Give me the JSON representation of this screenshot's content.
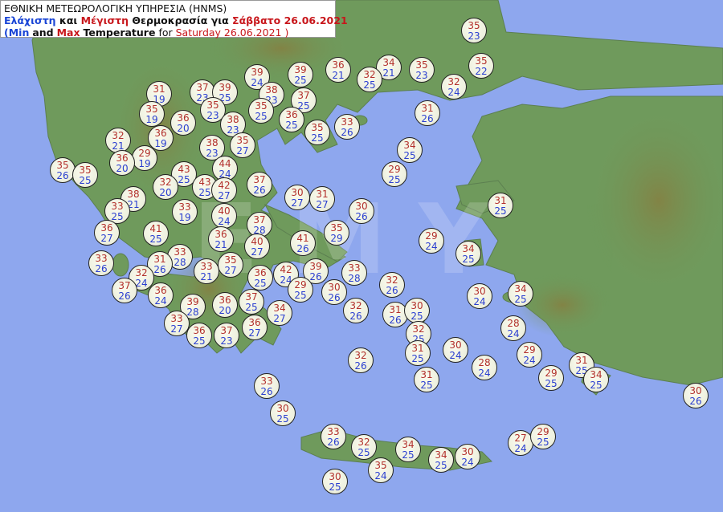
{
  "header": {
    "line1": "ΕΘΝΙΚΗ ΜΕΤΕΩΡΟΛΟΓΙΚΗ ΥΠΗΡΕΣΙΑ (HNMS)",
    "line2": {
      "min": "Ελάχιστη",
      "and": "και",
      "max": "Μέγιστη",
      "temp": "Θερμοκρασία για",
      "date": "Σάββατο 26.06.2021"
    },
    "line3": {
      "open": "(",
      "min": "Min",
      "and": "and",
      "max": "Max",
      "temp": "Temperature",
      "for": "for",
      "date": "Saturday 26.06.2021 )"
    }
  },
  "watermark": "EMY",
  "colors": {
    "sea": "#8ea7ee",
    "land": "#6f9a5c",
    "max": "#b2302c",
    "min": "#2b3fd0"
  },
  "stations": [
    [
      590,
      38,
      35,
      23
    ],
    [
      599,
      82,
      35,
      22
    ],
    [
      525,
      87,
      35,
      23
    ],
    [
      484,
      84,
      34,
      21
    ],
    [
      460,
      99,
      32,
      25
    ],
    [
      421,
      87,
      36,
      21
    ],
    [
      374,
      93,
      39,
      25
    ],
    [
      320,
      96,
      39,
      24
    ],
    [
      338,
      118,
      38,
      23
    ],
    [
      378,
      125,
      37,
      25
    ],
    [
      325,
      138,
      35,
      25
    ],
    [
      363,
      149,
      36,
      25
    ],
    [
      395,
      165,
      35,
      25
    ],
    [
      432,
      158,
      33,
      26
    ],
    [
      565,
      108,
      32,
      24
    ],
    [
      532,
      141,
      31,
      26
    ],
    [
      510,
      187,
      34,
      25
    ],
    [
      491,
      217,
      29,
      25
    ],
    [
      623,
      256,
      31,
      25
    ],
    [
      198,
      117,
      31,
      19
    ],
    [
      252,
      115,
      37,
      23
    ],
    [
      280,
      115,
      39,
      25
    ],
    [
      265,
      137,
      35,
      23
    ],
    [
      189,
      142,
      35,
      19
    ],
    [
      228,
      153,
      36,
      20
    ],
    [
      290,
      155,
      38,
      23
    ],
    [
      200,
      172,
      36,
      19
    ],
    [
      147,
      175,
      32,
      21
    ],
    [
      264,
      184,
      38,
      23
    ],
    [
      302,
      181,
      35,
      27
    ],
    [
      180,
      197,
      29,
      19
    ],
    [
      152,
      203,
      36,
      20
    ],
    [
      78,
      212,
      35,
      26
    ],
    [
      106,
      218,
      35,
      25
    ],
    [
      229,
      217,
      43,
      25
    ],
    [
      280,
      210,
      44,
      24
    ],
    [
      206,
      233,
      32,
      20
    ],
    [
      255,
      233,
      43,
      25
    ],
    [
      279,
      237,
      42,
      27
    ],
    [
      323,
      230,
      37,
      26
    ],
    [
      370,
      246,
      30,
      27
    ],
    [
      401,
      248,
      31,
      27
    ],
    [
      166,
      248,
      38,
      21
    ],
    [
      146,
      263,
      33,
      25
    ],
    [
      230,
      264,
      33,
      19
    ],
    [
      279,
      269,
      40,
      24
    ],
    [
      450,
      263,
      30,
      26
    ],
    [
      133,
      290,
      36,
      27
    ],
    [
      194,
      291,
      41,
      25
    ],
    [
      323,
      280,
      37,
      28
    ],
    [
      275,
      298,
      36,
      21
    ],
    [
      320,
      307,
      40,
      27
    ],
    [
      377,
      303,
      41,
      26
    ],
    [
      419,
      290,
      35,
      29
    ],
    [
      537,
      300,
      29,
      24
    ],
    [
      583,
      316,
      34,
      25
    ],
    [
      126,
      328,
      33,
      26
    ],
    [
      224,
      320,
      33,
      28
    ],
    [
      199,
      329,
      31,
      26
    ],
    [
      257,
      338,
      33,
      21
    ],
    [
      287,
      330,
      35,
      27
    ],
    [
      176,
      346,
      32,
      24
    ],
    [
      356,
      342,
      42,
      24
    ],
    [
      393,
      338,
      39,
      26
    ],
    [
      324,
      346,
      36,
      25
    ],
    [
      441,
      340,
      33,
      28
    ],
    [
      488,
      355,
      32,
      26
    ],
    [
      155,
      362,
      37,
      26
    ],
    [
      200,
      368,
      36,
      24
    ],
    [
      374,
      361,
      29,
      25
    ],
    [
      416,
      364,
      30,
      26
    ],
    [
      597,
      369,
      30,
      24
    ],
    [
      648,
      366,
      34,
      25
    ],
    [
      240,
      382,
      39,
      28
    ],
    [
      280,
      380,
      36,
      20
    ],
    [
      313,
      376,
      37,
      25
    ],
    [
      348,
      390,
      34,
      27
    ],
    [
      443,
      387,
      32,
      26
    ],
    [
      492,
      392,
      31,
      26
    ],
    [
      519,
      387,
      30,
      25
    ],
    [
      220,
      403,
      33,
      27
    ],
    [
      317,
      408,
      36,
      27
    ],
    [
      521,
      416,
      32,
      25
    ],
    [
      639,
      409,
      28,
      24
    ],
    [
      248,
      418,
      36,
      25
    ],
    [
      282,
      418,
      37,
      23
    ],
    [
      520,
      440,
      31,
      25
    ],
    [
      567,
      436,
      30,
      24
    ],
    [
      659,
      442,
      29,
      24
    ],
    [
      449,
      449,
      32,
      26
    ],
    [
      603,
      458,
      28,
      24
    ],
    [
      724,
      455,
      31,
      25
    ],
    [
      531,
      473,
      31,
      25
    ],
    [
      686,
      471,
      29,
      25
    ],
    [
      742,
      473,
      34,
      25
    ],
    [
      332,
      481,
      33,
      26
    ],
    [
      866,
      493,
      30,
      26
    ],
    [
      352,
      515,
      30,
      25
    ],
    [
      415,
      544,
      33,
      26
    ],
    [
      453,
      557,
      32,
      25
    ],
    [
      508,
      560,
      34,
      25
    ],
    [
      549,
      573,
      34,
      25
    ],
    [
      582,
      569,
      30,
      24
    ],
    [
      648,
      552,
      27,
      24
    ],
    [
      676,
      544,
      29,
      25
    ],
    [
      474,
      586,
      35,
      24
    ],
    [
      417,
      600,
      30,
      25
    ]
  ]
}
